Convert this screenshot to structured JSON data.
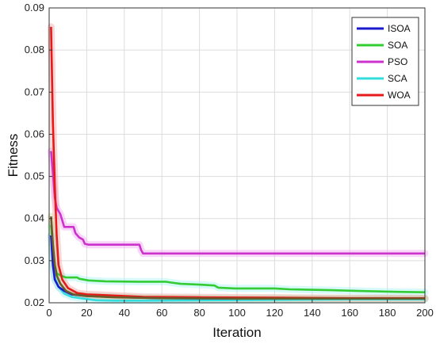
{
  "chart_data": {
    "type": "line",
    "title": "",
    "xlabel": "Iteration",
    "ylabel": "Fitness",
    "xlim": [
      0,
      200
    ],
    "ylim": [
      0.02,
      0.09
    ],
    "x_ticks": [
      0,
      20,
      40,
      60,
      80,
      100,
      120,
      140,
      160,
      180,
      200
    ],
    "y_ticks": [
      0.02,
      0.03,
      0.04,
      0.05,
      0.06,
      0.07,
      0.08,
      0.09
    ],
    "x_tick_labels": [
      "0",
      "20",
      "40",
      "60",
      "80",
      "100",
      "120",
      "140",
      "160",
      "180",
      "200"
    ],
    "y_tick_labels": [
      "0.02",
      "0.03",
      "0.04",
      "0.05",
      "0.06",
      "0.07",
      "0.08",
      "0.09"
    ],
    "grid": true,
    "legend_position": "top-right",
    "series": [
      {
        "name": "PSO",
        "color": "#cc33cc",
        "band_color": "#f2a6f2",
        "points": [
          [
            1,
            0.056
          ],
          [
            2,
            0.051
          ],
          [
            3,
            0.045
          ],
          [
            4,
            0.0425
          ],
          [
            6,
            0.041
          ],
          [
            8,
            0.038
          ],
          [
            13,
            0.038
          ],
          [
            14,
            0.0365
          ],
          [
            16,
            0.0355
          ],
          [
            18,
            0.035
          ],
          [
            19,
            0.034
          ],
          [
            21,
            0.0338
          ],
          [
            30,
            0.0338
          ],
          [
            48,
            0.0338
          ],
          [
            49,
            0.0325
          ],
          [
            50,
            0.0317
          ],
          [
            200,
            0.0317
          ]
        ]
      },
      {
        "name": "SOA",
        "color": "#33cc33",
        "band_color": "#a6f2f2",
        "points": [
          [
            1,
            0.0385
          ],
          [
            2,
            0.033
          ],
          [
            3,
            0.029
          ],
          [
            4,
            0.027
          ],
          [
            6,
            0.0265
          ],
          [
            9,
            0.026
          ],
          [
            15,
            0.026
          ],
          [
            16,
            0.0257
          ],
          [
            21,
            0.0253
          ],
          [
            30,
            0.0251
          ],
          [
            47,
            0.025
          ],
          [
            62,
            0.025
          ],
          [
            65,
            0.0248
          ],
          [
            70,
            0.0245
          ],
          [
            80,
            0.0243
          ],
          [
            88,
            0.0241
          ],
          [
            90,
            0.0236
          ],
          [
            99,
            0.0234
          ],
          [
            120,
            0.0234
          ],
          [
            128,
            0.0232
          ],
          [
            150,
            0.023
          ],
          [
            165,
            0.0228
          ],
          [
            185,
            0.0226
          ],
          [
            200,
            0.0225
          ]
        ]
      },
      {
        "name": "SCA",
        "color": "#33dddd",
        "band_color": "#a6f2f2",
        "points": [
          [
            1,
            0.036
          ],
          [
            2,
            0.0295
          ],
          [
            3,
            0.026
          ],
          [
            5,
            0.0238
          ],
          [
            8,
            0.0222
          ],
          [
            12,
            0.0214
          ],
          [
            18,
            0.021
          ],
          [
            25,
            0.0206
          ],
          [
            35,
            0.0205
          ],
          [
            50,
            0.0205
          ],
          [
            80,
            0.0206
          ],
          [
            120,
            0.0207
          ],
          [
            160,
            0.0208
          ],
          [
            200,
            0.0208
          ]
        ]
      },
      {
        "name": "ISOA",
        "color": "#1a1acc",
        "band_color": "#a6d9f2",
        "points": [
          [
            1,
            0.036
          ],
          [
            2,
            0.029
          ],
          [
            3,
            0.0255
          ],
          [
            5,
            0.0238
          ],
          [
            8,
            0.0228
          ],
          [
            12,
            0.022
          ],
          [
            20,
            0.0216
          ],
          [
            40,
            0.0213
          ],
          [
            60,
            0.0211
          ],
          [
            100,
            0.021
          ],
          [
            150,
            0.021
          ],
          [
            200,
            0.021
          ]
        ]
      },
      {
        "name": "WOA",
        "color": "#e61a1a",
        "band_color": "#f2a6a6",
        "points": [
          [
            1,
            0.0855
          ],
          [
            2,
            0.063
          ],
          [
            3,
            0.048
          ],
          [
            4,
            0.036
          ],
          [
            5,
            0.029
          ],
          [
            7,
            0.0255
          ],
          [
            10,
            0.0235
          ],
          [
            15,
            0.0223
          ],
          [
            20,
            0.022
          ],
          [
            30,
            0.0218
          ],
          [
            50,
            0.0214
          ],
          [
            80,
            0.0213
          ],
          [
            120,
            0.0212
          ],
          [
            160,
            0.0211
          ],
          [
            200,
            0.0211
          ]
        ]
      },
      {
        "name": "",
        "color": "#6b5a2a",
        "band_color": "#d9d9a6",
        "points": [
          [
            1,
            0.0405
          ],
          [
            2,
            0.034
          ],
          [
            3,
            0.029
          ],
          [
            4,
            0.0265
          ],
          [
            6,
            0.0245
          ],
          [
            9,
            0.0228
          ],
          [
            13,
            0.022
          ],
          [
            20,
            0.0216
          ],
          [
            35,
            0.0213
          ],
          [
            60,
            0.0211
          ],
          [
            100,
            0.021
          ],
          [
            150,
            0.021
          ],
          [
            200,
            0.021
          ]
        ]
      }
    ],
    "legend_order": [
      "ISOA",
      "SOA",
      "PSO",
      "SCA",
      "WOA"
    ]
  }
}
